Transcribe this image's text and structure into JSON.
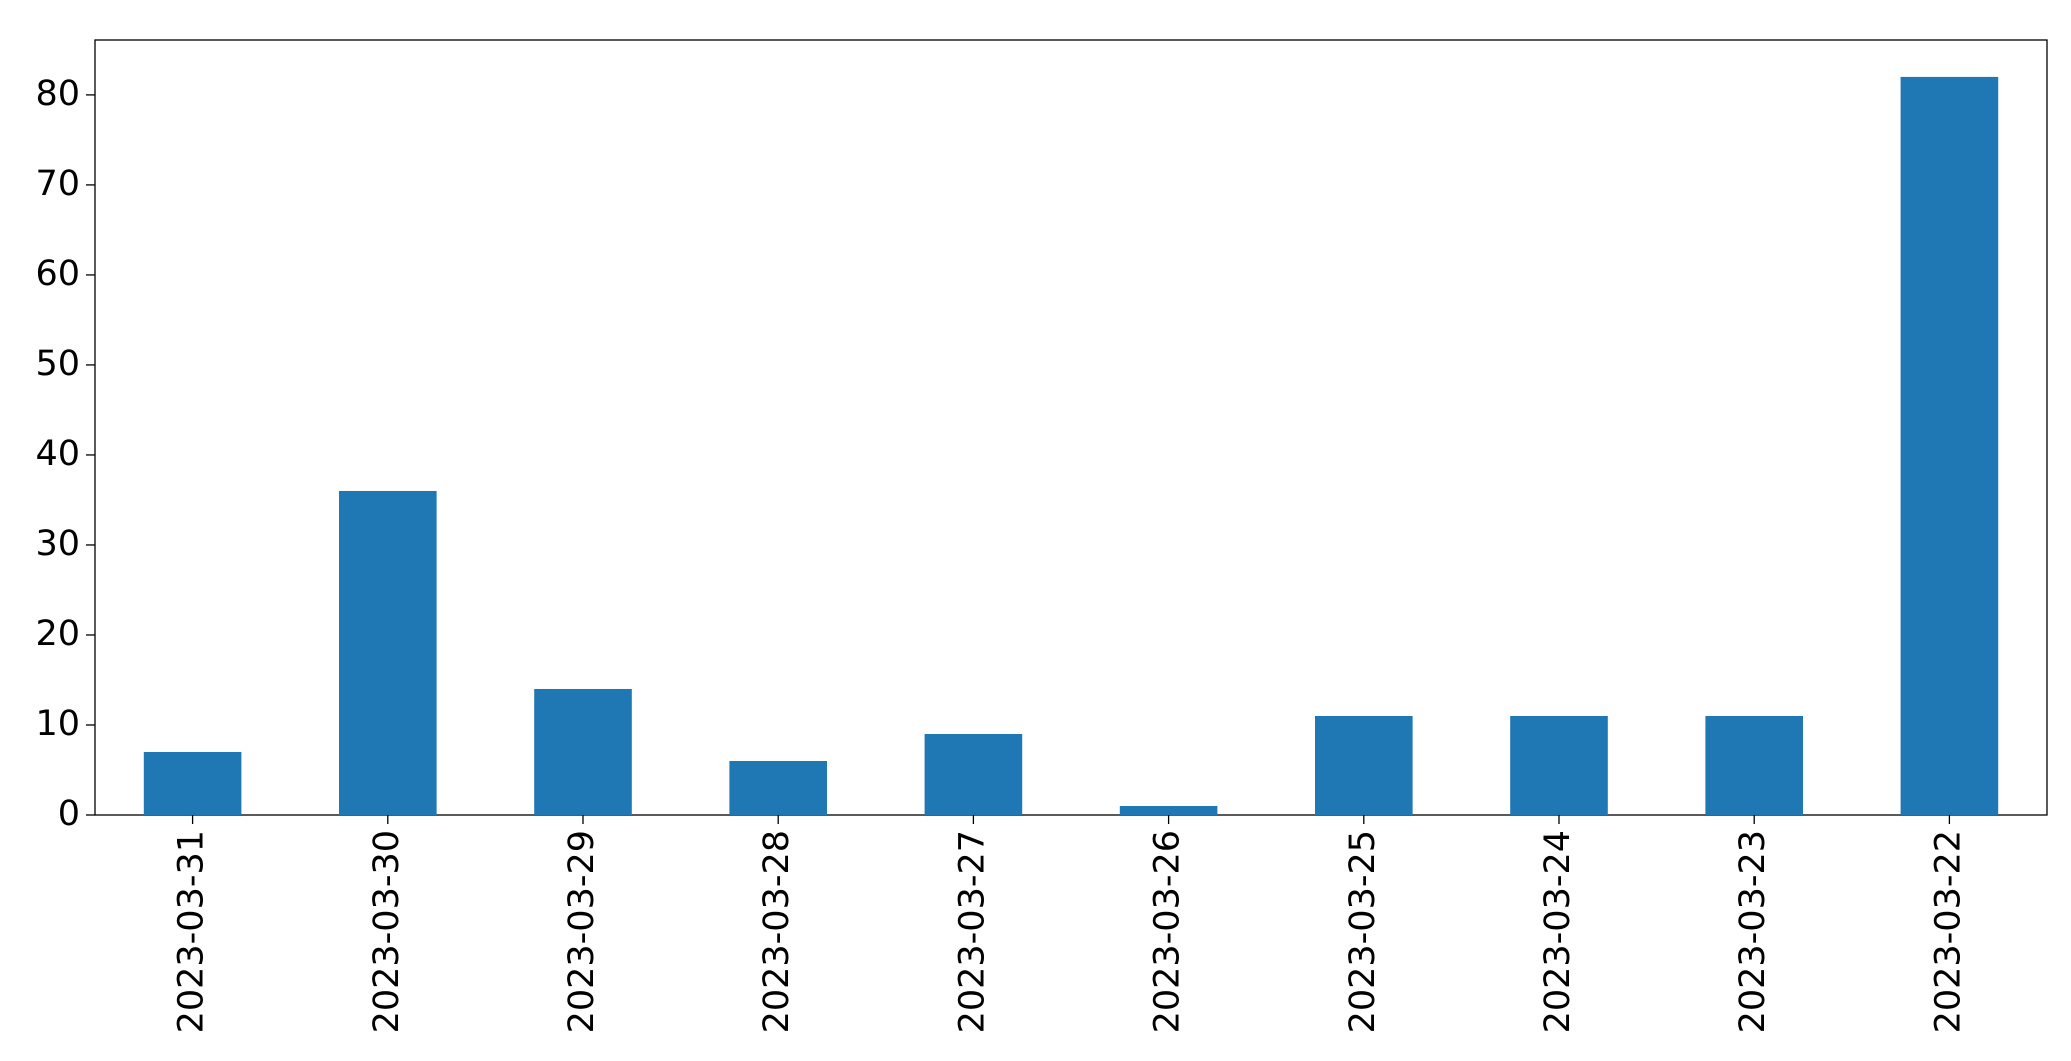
{
  "chart_data": {
    "type": "bar",
    "categories": [
      "2023-03-31",
      "2023-03-30",
      "2023-03-29",
      "2023-03-28",
      "2023-03-27",
      "2023-03-26",
      "2023-03-25",
      "2023-03-24",
      "2023-03-23",
      "2023-03-22"
    ],
    "values": [
      7,
      36,
      14,
      6,
      9,
      1,
      11,
      11,
      11,
      82
    ],
    "color": "#1f77b4",
    "ylim": [
      0,
      86.1
    ],
    "yticks": [
      0,
      10,
      20,
      30,
      40,
      50,
      60,
      70,
      80
    ],
    "grid": false
  }
}
